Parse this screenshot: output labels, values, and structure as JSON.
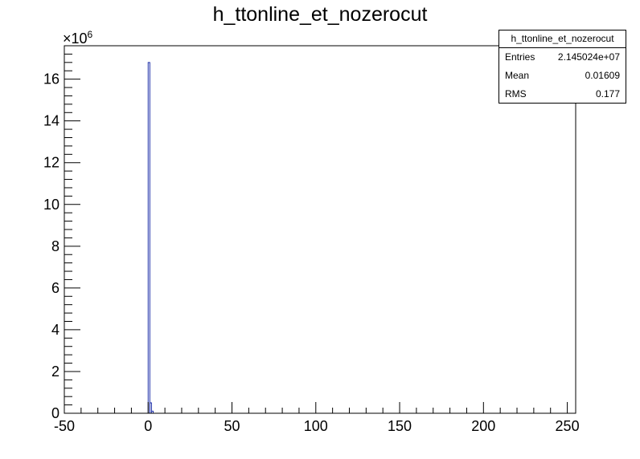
{
  "chart_data": {
    "type": "bar",
    "title": "h_ttonline_et_nozerocut",
    "xlim": [
      -50,
      255
    ],
    "ylim": [
      0,
      17600000
    ],
    "y_multiplier_label": "×10",
    "y_multiplier_exponent": "6",
    "x_ticks": [
      -50,
      0,
      50,
      100,
      150,
      200,
      250
    ],
    "y_ticks": [
      0,
      2,
      4,
      6,
      8,
      10,
      12,
      14,
      16
    ],
    "bins": [
      {
        "x_low": 0,
        "x_high": 1,
        "value": 16800000
      },
      {
        "x_low": 1,
        "x_high": 2,
        "value": 500000
      },
      {
        "x_low": 2,
        "x_high": 3,
        "value": 100000
      }
    ],
    "line_color": "#1c2ea8",
    "stats": {
      "title": "h_ttonline_et_nozerocut",
      "rows": [
        {
          "label": "Entries",
          "value": "2.145024e+07"
        },
        {
          "label": "Mean",
          "value": "0.01609"
        },
        {
          "label": "RMS",
          "value": "0.177"
        }
      ]
    }
  }
}
